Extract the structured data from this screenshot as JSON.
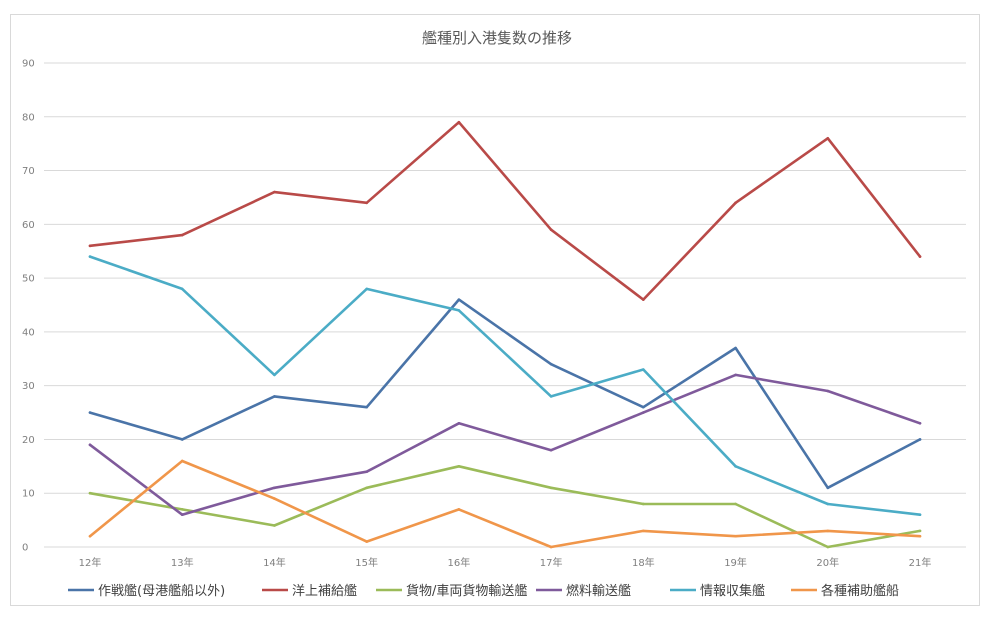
{
  "chart_data": {
    "type": "line",
    "title": "艦種別入港隻数の推移",
    "xlabel": "",
    "ylabel": "",
    "categories": [
      "12年",
      "13年",
      "14年",
      "15年",
      "16年",
      "17年",
      "18年",
      "19年",
      "20年",
      "21年"
    ],
    "ylim": [
      0,
      90
    ],
    "yticks": [
      "0",
      "10",
      "20",
      "30",
      "40",
      "50",
      "60",
      "70",
      "80",
      "90"
    ],
    "grid": true,
    "legend_position": "bottom",
    "series": [
      {
        "name": "作戦艦(母港艦船以外)",
        "color": "#4a74a8",
        "values": [
          25,
          20,
          28,
          26,
          46,
          34,
          26,
          37,
          11,
          20
        ]
      },
      {
        "name": "洋上補給艦",
        "color": "#b94a48",
        "values": [
          56,
          58,
          66,
          64,
          79,
          59,
          46,
          64,
          76,
          54
        ]
      },
      {
        "name": "貨物/車両貨物輸送艦",
        "color": "#9bbb59",
        "values": [
          10,
          7,
          4,
          11,
          15,
          11,
          8,
          8,
          0,
          3
        ]
      },
      {
        "name": "燃料輸送艦",
        "color": "#7f5a9b",
        "values": [
          19,
          6,
          11,
          14,
          23,
          18,
          25,
          32,
          29,
          23
        ]
      },
      {
        "name": "情報収集艦",
        "color": "#4bacc6",
        "values": [
          54,
          48,
          32,
          48,
          44,
          28,
          33,
          15,
          8,
          6
        ]
      },
      {
        "name": "各種補助艦船",
        "color": "#f0964a",
        "values": [
          2,
          16,
          9,
          1,
          7,
          0,
          3,
          2,
          3,
          2
        ]
      }
    ]
  }
}
